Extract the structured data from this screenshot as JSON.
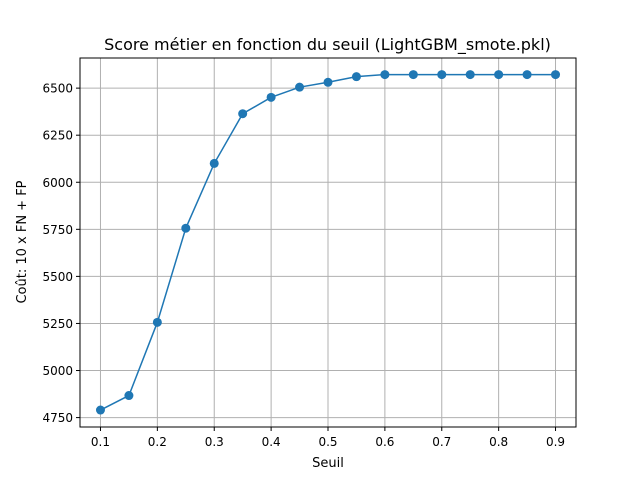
{
  "chart_data": {
    "type": "line",
    "title": "Score métier en fonction du seuil (LightGBM_smote.pkl)",
    "xlabel": "Seuil",
    "ylabel": "Coût: 10 x FN + FP",
    "x": [
      0.1,
      0.15,
      0.2,
      0.25,
      0.3,
      0.35,
      0.4,
      0.45,
      0.5,
      0.55,
      0.6,
      0.65,
      0.7,
      0.75,
      0.8,
      0.85,
      0.9
    ],
    "series": [
      {
        "values": [
          4790,
          4867,
          5256,
          5756,
          6100,
          6364,
          6451,
          6505,
          6531,
          6561,
          6572,
          6572,
          6572,
          6572,
          6572,
          6572,
          6572
        ]
      }
    ],
    "xlim": [
      0.064,
      0.936
    ],
    "ylim": [
      4700,
      6660
    ],
    "xticks": [
      "0.1",
      "0.2",
      "0.3",
      "0.4",
      "0.5",
      "0.6",
      "0.7",
      "0.8",
      "0.9"
    ],
    "yticks": [
      "4750",
      "5000",
      "5250",
      "5500",
      "5750",
      "6000",
      "6250",
      "6500"
    ],
    "grid": true,
    "marker": "circle",
    "color": "#1f77b4"
  }
}
